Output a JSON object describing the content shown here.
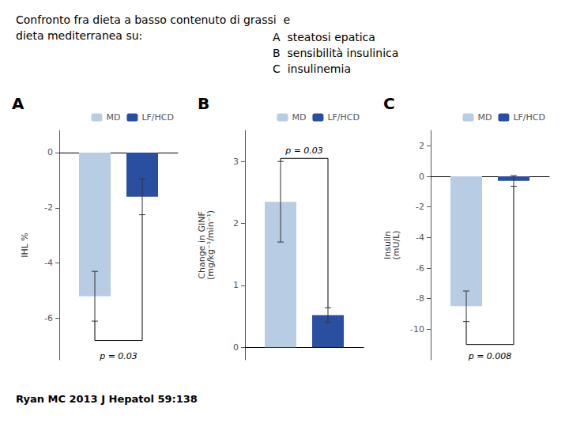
{
  "title": "Confronto fra dieta a basso contenuto di grassi  e\ndieta mediterranea su:",
  "subtitle": "A  steatosi epatica\nB  sensibilità insulinica\nC  insulinemia",
  "annotations": [
    {
      "text": "Ryan MC 2013 J Hepatol 59:138"
    }
  ],
  "chart_data": [
    {
      "type": "bar",
      "title": "A",
      "ylabel": "IHL %",
      "categories": [
        null
      ],
      "series": [
        {
          "name": "MD",
          "color": "#b8cce4",
          "values": [
            -5.2
          ],
          "errors": [
            0.9
          ]
        },
        {
          "name": "LF/HCD",
          "color": "#2b4fa0",
          "values": [
            -1.6
          ],
          "errors": [
            0.65
          ]
        }
      ],
      "ylim": [
        -7.5,
        0.8
      ],
      "yticks": [
        0,
        -2,
        -4,
        -6
      ],
      "grid": false,
      "legend": "upper right",
      "tick_labels": "y",
      "annotations": [
        {
          "text": "p = 0.03",
          "y": -7.2,
          "bracket_y": -6.8
        }
      ]
    },
    {
      "type": "bar",
      "title": "B",
      "ylabel": "Change in GINF\n(mg/kg⁻¹/min⁻¹)",
      "categories": [
        null
      ],
      "series": [
        {
          "name": "MD",
          "color": "#b8cce4",
          "values": [
            2.35
          ],
          "errors": [
            0.65
          ]
        },
        {
          "name": "LF/HCD",
          "color": "#2b4fa0",
          "values": [
            0.52
          ],
          "errors": [
            0.12
          ]
        }
      ],
      "ylim": [
        -0.2,
        3.5
      ],
      "yticks": [
        0,
        1,
        2,
        3
      ],
      "grid": false,
      "legend": "upper right",
      "tick_labels": "y",
      "annotations": [
        {
          "text": "p = 0.03",
          "y": 3.1,
          "bracket_y": 3.05
        }
      ]
    },
    {
      "type": "bar",
      "title": "C",
      "ylabel": "Insulin\n(mU/L)",
      "categories": [
        null
      ],
      "series": [
        {
          "name": "MD",
          "color": "#b8cce4",
          "values": [
            -8.5
          ],
          "errors": [
            1.0
          ]
        },
        {
          "name": "LF/HCD",
          "color": "#2b4fa0",
          "values": [
            -0.3
          ],
          "errors": [
            0.35
          ]
        }
      ],
      "ylim": [
        -12,
        3
      ],
      "yticks": [
        2,
        0,
        -2,
        -4,
        -6,
        -8,
        -10
      ],
      "grid": false,
      "legend": "upper right",
      "tick_labels": "y",
      "annotations": [
        {
          "text": "p = 0.008",
          "y": -11.5,
          "bracket_y": -11.0
        }
      ]
    }
  ]
}
